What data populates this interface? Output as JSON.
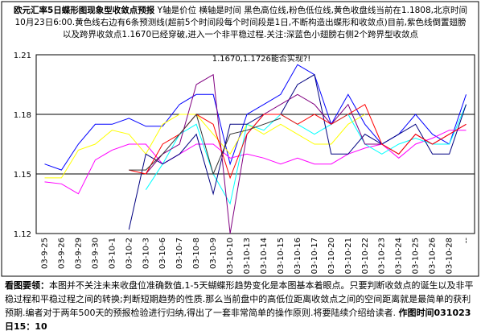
{
  "chart_data": {
    "type": "line",
    "title": "欧元汇率5日蝶形图现象型收敛点预报",
    "subtitle": "Y轴是价位 横轴是时间 黑色高位线,粉色低位线,黄色收盘线当前在1.1808,北京时间10月23日6:00.黄色线右边有6条预测线(超前5个时间段每个时间段是1日,不断构造出蝶形和收敛点)目前,紫色线倒置翅膀以及跨界收敛点1.1670已经穿破,进入一个非平稳过程.关注:深蓝色小翅膀右侧2个跨界型收敛点",
    "annotation": "1.1670,1.1726能否实现?!",
    "footnote": {
      "heading": "看图要领：",
      "text": "本图并不关注未来收盘位准确数值,1-5天蝴蝶形趋势变化是本图基本着眼点。只要判断收敛点的诞生以及非平稳过程和平稳过程之间的转换;判断短期趋势的性质.那么当前盘中的高低位距离收敛点之间的空间距离就是最简单的获利预期.编者对于两年500天的预报检验进行归纳,得出了一套非常简单的操作原则.将要陆续介绍给读者.",
      "signature": "作图时间031023日15：10"
    },
    "categories": [
      "03-9-25",
      "03-9-26",
      "03-9-29",
      "03-9-30",
      "03-10-1",
      "03-10-2",
      "03-10-3",
      "03-10-6",
      "03-10-7",
      "03-10-8",
      "03-10-9",
      "03-10-10",
      "03-10-13",
      "03-10-14",
      "03-10-15",
      "03-10-16",
      "03-10-17",
      "03-10-20",
      "03-10-21",
      "03-10-22",
      "03-10-23",
      "03-10-24",
      "03-10-25",
      "03-10-26",
      "03-10-28",
      "--"
    ],
    "ylim": [
      1.12,
      1.21
    ],
    "yticks": [
      1.12,
      1.15,
      1.18,
      1.21
    ],
    "grid": true,
    "series": [
      {
        "color": "#0000ff",
        "values": [
          1.155,
          1.152,
          1.165,
          1.175,
          1.175,
          1.178,
          1.174,
          1.174,
          1.185,
          1.19,
          1.19,
          1.155,
          1.18,
          1.185,
          1.19,
          1.205,
          1.2,
          1.175,
          1.19,
          1.175,
          1.165,
          1.17,
          1.18,
          1.17,
          1.165,
          1.19
        ]
      },
      {
        "color": "#ff00ff",
        "values": [
          1.146,
          1.145,
          1.14,
          1.157,
          1.162,
          1.165,
          1.165,
          1.155,
          1.16,
          1.165,
          1.165,
          1.158,
          1.16,
          1.158,
          1.155,
          1.158,
          1.155,
          1.155,
          1.16,
          1.163,
          1.165,
          1.158,
          1.165,
          1.168,
          1.172,
          1.172
        ]
      },
      {
        "color": "#ffff00",
        "values": [
          1.148,
          1.148,
          1.162,
          1.165,
          1.172,
          1.17,
          1.16,
          1.175,
          1.18,
          1.18,
          1.17,
          1.16,
          1.175,
          1.17,
          1.175,
          1.17,
          1.165,
          1.165,
          1.175,
          1.18,
          null,
          null,
          null,
          null,
          null,
          null
        ]
      },
      {
        "color": "#00ffff",
        "values": [
          null,
          null,
          null,
          null,
          null,
          null,
          1.142,
          1.155,
          1.17,
          1.175,
          1.15,
          1.135,
          1.175,
          1.172,
          1.18,
          1.175,
          1.17,
          1.175,
          1.18,
          1.165,
          1.16,
          1.165,
          1.168,
          1.165,
          1.165,
          1.185
        ]
      },
      {
        "color": "#000080",
        "values": [
          null,
          null,
          null,
          null,
          null,
          1.122,
          1.16,
          1.155,
          1.16,
          1.17,
          1.14,
          1.175,
          1.175,
          1.18,
          1.18,
          1.195,
          1.2,
          1.16,
          1.16,
          1.17,
          1.165,
          1.17,
          1.175,
          1.16,
          1.16,
          1.185
        ]
      },
      {
        "color": "#800080",
        "values": [
          null,
          null,
          null,
          null,
          null,
          null,
          1.15,
          1.16,
          1.165,
          1.195,
          1.2,
          1.12,
          1.17,
          1.18,
          1.185,
          1.19,
          1.185,
          1.175,
          1.185,
          1.165,
          1.165,
          1.16,
          1.17,
          1.165,
          1.17,
          1.175
        ]
      },
      {
        "color": "#ff0000",
        "values": [
          null,
          null,
          null,
          null,
          null,
          1.152,
          1.15,
          1.165,
          1.17,
          1.18,
          1.175,
          1.148,
          1.17,
          1.18,
          1.18,
          1.175,
          1.18,
          1.175,
          1.18,
          1.185,
          1.165,
          1.16,
          1.17,
          1.165,
          1.17,
          1.175
        ]
      },
      {
        "color": "#333333",
        "values": [
          null,
          null,
          null,
          null,
          null,
          1.152,
          1.152,
          1.16,
          1.17,
          1.18,
          1.15,
          1.17,
          1.172,
          1.175,
          1.178,
          null,
          null,
          null,
          null,
          null,
          null,
          null,
          null,
          null,
          null,
          null
        ]
      }
    ]
  }
}
